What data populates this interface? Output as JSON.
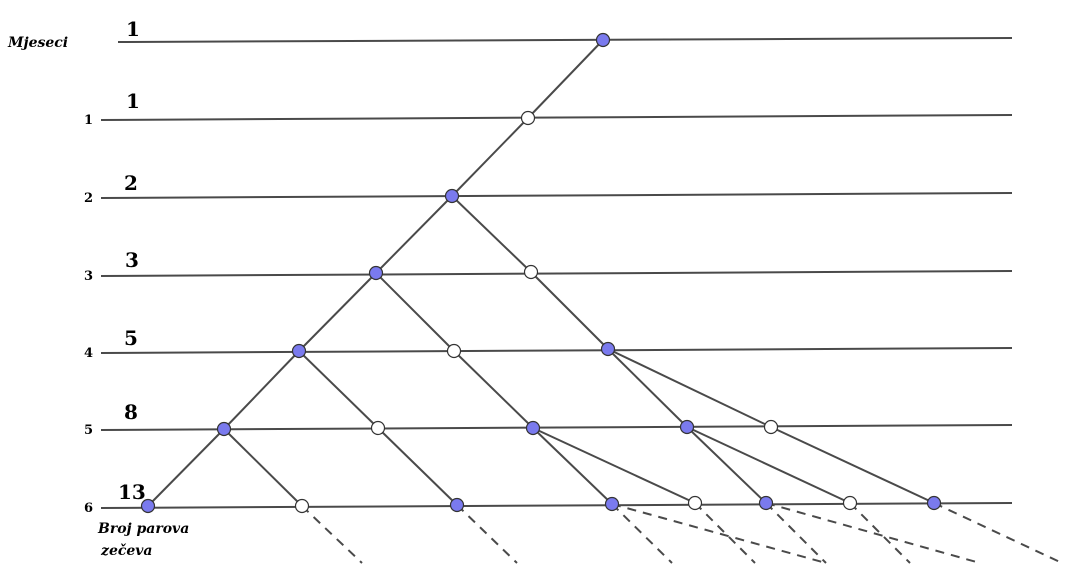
{
  "labels": {
    "months_header": "Mjeseci",
    "pairs_line1": "Broj parova",
    "pairs_line2": "zečeva"
  },
  "rows": [
    {
      "month": "",
      "pairs": "1"
    },
    {
      "month": "1",
      "pairs": "1"
    },
    {
      "month": "2",
      "pairs": "2"
    },
    {
      "month": "3",
      "pairs": "3"
    },
    {
      "month": "4",
      "pairs": "5"
    },
    {
      "month": "5",
      "pairs": "8"
    },
    {
      "month": "6",
      "pairs": "13"
    }
  ],
  "colors": {
    "line": "#4a4a4a",
    "adult_pair": "#7a7aee",
    "young_pair": "#ffffff",
    "node_stroke": "#333333"
  }
}
